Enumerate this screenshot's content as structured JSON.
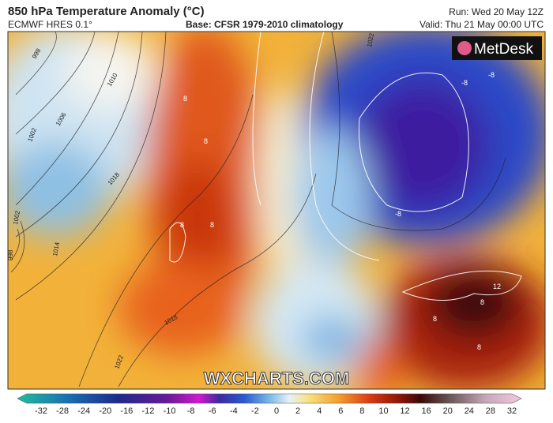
{
  "header": {
    "title": "850 hPa Temperature Anomaly (°C)",
    "model": "ECMWF HRES 0.1°",
    "base": "Base: CFSR 1979-2010 climatology",
    "run": "Run: Wed 20 May 12Z",
    "valid": "Valid: Thu 21 May 00:00 UTC"
  },
  "logo": "MetDesk",
  "watermark": "WXCHARTS.COM",
  "map": {
    "isobar_labels": [
      998,
      1010,
      1002,
      1006,
      1018,
      1002,
      1014,
      998,
      1018,
      1022,
      1022
    ],
    "anomaly_labels": [
      8,
      8,
      8,
      8,
      -8,
      -8,
      -8,
      12,
      8,
      8,
      8
    ]
  },
  "legend": {
    "ticks": [
      -32,
      -28,
      -24,
      -20,
      -16,
      -12,
      -10,
      -8,
      -6,
      -4,
      -2,
      0,
      2,
      4,
      6,
      8,
      10,
      12,
      16,
      20,
      24,
      28,
      32
    ]
  }
}
